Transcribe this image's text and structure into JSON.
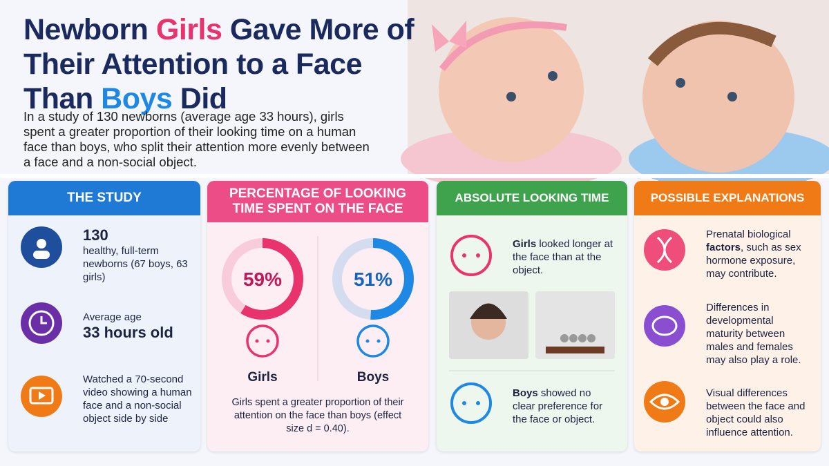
{
  "header": {
    "title": {
      "before": "Newborn ",
      "girls": "Girls",
      "middle": " Gave More of Their Attention to a Face Than ",
      "boys": "Boys",
      "after": " Did"
    },
    "subtitle": "In a study of 130 newborns (average age 33 hours), girls spent a greater proportion of their looking time on a human face than boys, who split their attention more evenly between a face and a non-social object."
  },
  "study": {
    "title": "THE STUDY",
    "items": [
      {
        "value": "130",
        "text": "healthy, full-term newborns (67 boys, 63 girls)"
      },
      {
        "text": "Average age",
        "value": "33 hours old"
      },
      {
        "text": "Watched a 70-second video showing a human face and a non-social object side by side"
      }
    ]
  },
  "percentage": {
    "title": "PERCENTAGE OF LOOKING TIME SPENT ON THE FACE",
    "charts": [
      {
        "name": "Girls",
        "value": 59,
        "label": "59%",
        "color": "#e8336d"
      },
      {
        "name": "Boys",
        "value": 51,
        "label": "51%",
        "color": "#1e88e5"
      }
    ],
    "note": "Girls spent a greater proportion of their attention on the face than boys (effect size d = 0.40)."
  },
  "absolute": {
    "title": "ABSOLUTE LOOKING TIME",
    "girls": {
      "bold": "Girls",
      "text": " looked longer at the face than at the object."
    },
    "boys": {
      "bold": "Boys",
      "text": " showed no clear preference for the face or object."
    }
  },
  "explanations": {
    "title": "POSSIBLE EXPLANATIONS",
    "items": [
      {
        "before": "Prenatal biological ",
        "bold": "factors",
        "after": ", such as sex hormone exposure, may contribute."
      },
      {
        "before": "Differences in developmental maturity between males and females may also play a role."
      },
      {
        "before": "Visual differences between the face and object could also influence attention."
      }
    ]
  }
}
